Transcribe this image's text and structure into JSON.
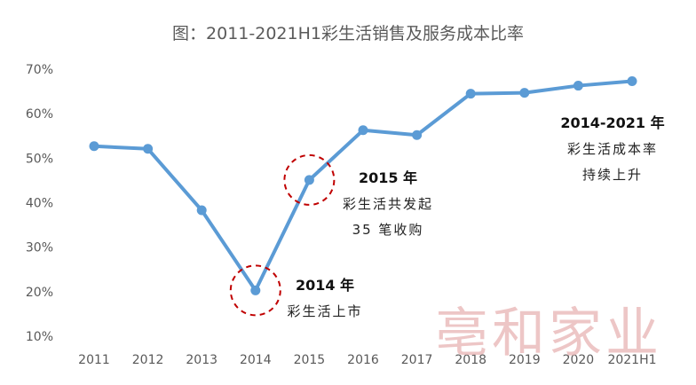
{
  "chart_data": {
    "type": "line",
    "title": "图：2011-2021H1彩生活销售及服务成本比率",
    "x": [
      "2011",
      "2012",
      "2013",
      "2014",
      "2015",
      "2016",
      "2017",
      "2018",
      "2019",
      "2020",
      "2021H1"
    ],
    "series": [
      {
        "values": [
          52.7,
          52.1,
          38.3,
          20.3,
          45.1,
          56.3,
          55.2,
          64.5,
          64.7,
          66.3,
          67.3
        ]
      }
    ],
    "ylim": [
      10,
      70
    ],
    "yticks": [
      "10%",
      "20%",
      "30%",
      "40%",
      "50%",
      "60%",
      "70%"
    ],
    "grid": false,
    "legend": "none",
    "line_color": "#5b9bd5",
    "highlight_color": "#c00000",
    "highlighted_points": [
      "2014",
      "2015"
    ],
    "annotations": [
      {
        "title": "2014 年",
        "lines": [
          "彩生活上市"
        ]
      },
      {
        "title": "2015 年",
        "lines": [
          "彩生活共发起",
          "35 笔收购"
        ]
      },
      {
        "title": "2014-2021 年",
        "lines": [
          "彩生活成本率",
          "持续上升"
        ]
      }
    ]
  },
  "watermark": "亳和家业"
}
